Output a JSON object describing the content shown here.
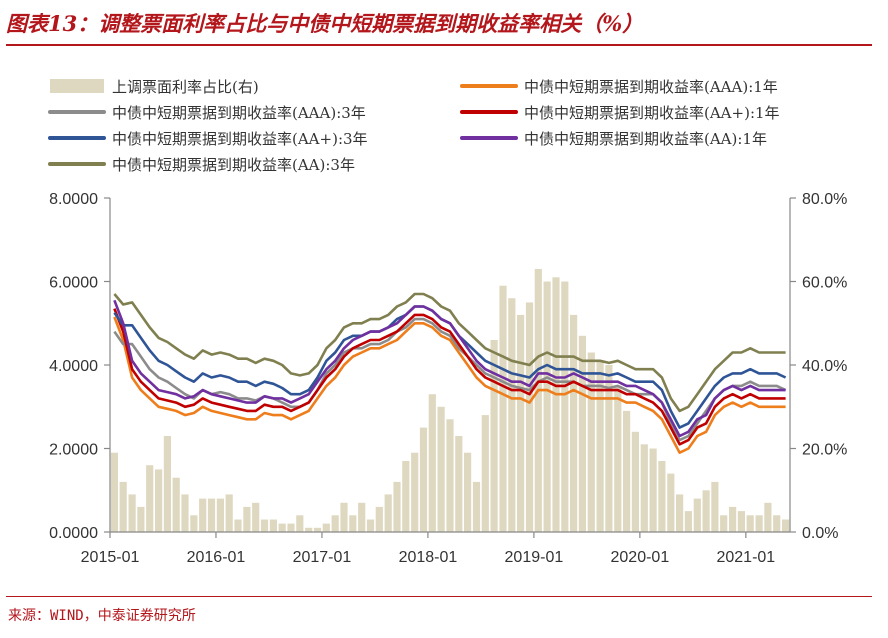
{
  "header": {
    "title": "图表13：调整票面利率占比与中债中短期票据到期收益率相关（%）"
  },
  "footer": {
    "source": "来源：WIND，中泰证券研究所"
  },
  "colors": {
    "brand": "#b3161b",
    "bar": "#dfd8c0",
    "aaa1": "#ee7d1c",
    "aaa3": "#8c8c8c",
    "aap1": "#c00000",
    "aap3": "#2f5597",
    "aa1": "#7030a0",
    "aa3": "#7f7f4f"
  },
  "chart_data": {
    "type": "line",
    "title": "",
    "x_ticks": [
      "2015-01",
      "2016-01",
      "2017-01",
      "2018-01",
      "2019-01",
      "2020-01",
      "2021-01"
    ],
    "y_left": {
      "ticks": [
        "0.0000",
        "2.0000",
        "4.0000",
        "6.0000",
        "8.0000"
      ],
      "range": [
        0,
        8
      ]
    },
    "y_right": {
      "ticks": [
        "0.0%",
        "20.0%",
        "40.0%",
        "60.0%",
        "80.0%"
      ],
      "range": [
        0,
        80
      ]
    },
    "grid": false,
    "legend_position": "top",
    "x_months": [
      0,
      1,
      2,
      3,
      4,
      5,
      6,
      7,
      8,
      9,
      10,
      11,
      12,
      13,
      14,
      15,
      16,
      17,
      18,
      19,
      20,
      21,
      22,
      23,
      24,
      25,
      26,
      27,
      28,
      29,
      30,
      31,
      32,
      33,
      34,
      35,
      36,
      37,
      38,
      39,
      40,
      41,
      42,
      43,
      44,
      45,
      46,
      47,
      48,
      49,
      50,
      51,
      52,
      53,
      54,
      55,
      56,
      57,
      58,
      59,
      60,
      61,
      62,
      63,
      64,
      65,
      66,
      67,
      68,
      69,
      70,
      71,
      72,
      73,
      74,
      75,
      76
    ],
    "series": [
      {
        "name": "上调票面利率占比(右)",
        "kind": "bar",
        "axis": "right",
        "color_key": "bar",
        "values": [
          19,
          12,
          9,
          6,
          16,
          15,
          23,
          13,
          9,
          4,
          8,
          8,
          8,
          9,
          3,
          6,
          7,
          3,
          3,
          2,
          2,
          4,
          1,
          1,
          2,
          4,
          7,
          4,
          7,
          3,
          6,
          9,
          12,
          17,
          19,
          25,
          33,
          30,
          27,
          23,
          19,
          12,
          28,
          46,
          59,
          56,
          52,
          55,
          63,
          60,
          61,
          60,
          52,
          47,
          43,
          41,
          40,
          35,
          29,
          24,
          21,
          20,
          17,
          14,
          9,
          5,
          8,
          10,
          12,
          4,
          6,
          5,
          4,
          4,
          7,
          4,
          3
        ]
      },
      {
        "name": "中债中短期票据到期收益率(AAA):1年",
        "kind": "line",
        "axis": "left",
        "color_key": "aaa1",
        "values": [
          5.15,
          4.6,
          3.7,
          3.4,
          3.2,
          3.0,
          2.95,
          2.9,
          2.8,
          2.85,
          3.0,
          2.9,
          2.85,
          2.8,
          2.75,
          2.7,
          2.7,
          2.85,
          2.8,
          2.8,
          2.7,
          2.8,
          2.9,
          3.2,
          3.5,
          3.7,
          4.0,
          4.2,
          4.3,
          4.4,
          4.4,
          4.5,
          4.6,
          4.8,
          5.0,
          5.0,
          4.9,
          4.7,
          4.6,
          4.3,
          4.0,
          3.7,
          3.5,
          3.4,
          3.3,
          3.2,
          3.2,
          3.1,
          3.4,
          3.4,
          3.3,
          3.3,
          3.4,
          3.3,
          3.2,
          3.2,
          3.2,
          3.2,
          3.1,
          3.1,
          3.0,
          2.9,
          2.7,
          2.3,
          1.9,
          2.0,
          2.3,
          2.4,
          2.8,
          3.0,
          3.1,
          3.0,
          3.1,
          3.0,
          3.0,
          3.0,
          3.0
        ]
      },
      {
        "name": "中债中短期票据到期收益率(AAA):3年",
        "kind": "line",
        "axis": "left",
        "color_key": "aaa3",
        "values": [
          4.8,
          4.5,
          4.5,
          4.2,
          3.9,
          3.7,
          3.6,
          3.45,
          3.3,
          3.2,
          3.4,
          3.3,
          3.35,
          3.3,
          3.2,
          3.2,
          3.15,
          3.25,
          3.2,
          3.1,
          3.0,
          3.0,
          3.1,
          3.4,
          3.8,
          4.0,
          4.3,
          4.4,
          4.4,
          4.5,
          4.5,
          4.6,
          4.8,
          4.9,
          5.1,
          5.1,
          5.0,
          4.8,
          4.7,
          4.4,
          4.2,
          4.0,
          3.8,
          3.7,
          3.6,
          3.5,
          3.45,
          3.4,
          3.6,
          3.7,
          3.6,
          3.6,
          3.6,
          3.5,
          3.5,
          3.5,
          3.45,
          3.5,
          3.4,
          3.3,
          3.3,
          3.3,
          3.1,
          2.6,
          2.2,
          2.3,
          2.6,
          2.9,
          3.2,
          3.4,
          3.5,
          3.5,
          3.6,
          3.5,
          3.5,
          3.5,
          3.4
        ]
      },
      {
        "name": "中债中短期票据到期收益率(AA+):1年",
        "kind": "line",
        "axis": "left",
        "color_key": "aap1",
        "values": [
          5.35,
          4.8,
          3.9,
          3.6,
          3.4,
          3.2,
          3.15,
          3.1,
          3.0,
          3.05,
          3.2,
          3.1,
          3.05,
          3.0,
          2.95,
          2.9,
          2.9,
          3.05,
          3.0,
          3.0,
          2.9,
          3.0,
          3.1,
          3.4,
          3.7,
          3.9,
          4.2,
          4.4,
          4.5,
          4.6,
          4.6,
          4.7,
          4.8,
          5.0,
          5.2,
          5.2,
          5.1,
          4.9,
          4.8,
          4.5,
          4.2,
          3.9,
          3.7,
          3.6,
          3.5,
          3.4,
          3.4,
          3.3,
          3.6,
          3.6,
          3.5,
          3.5,
          3.6,
          3.5,
          3.4,
          3.4,
          3.4,
          3.4,
          3.3,
          3.3,
          3.2,
          3.1,
          2.9,
          2.5,
          2.1,
          2.2,
          2.5,
          2.6,
          3.0,
          3.2,
          3.3,
          3.2,
          3.3,
          3.2,
          3.2,
          3.2,
          3.2
        ]
      },
      {
        "name": "中债中短期票据到期收益率(AA+):3年",
        "kind": "line",
        "axis": "left",
        "color_key": "aap3",
        "values": [
          5.25,
          4.95,
          4.95,
          4.65,
          4.35,
          4.1,
          4.0,
          3.85,
          3.7,
          3.6,
          3.8,
          3.7,
          3.75,
          3.7,
          3.6,
          3.6,
          3.5,
          3.6,
          3.55,
          3.45,
          3.3,
          3.3,
          3.4,
          3.7,
          4.1,
          4.3,
          4.6,
          4.7,
          4.7,
          4.8,
          4.8,
          4.9,
          5.1,
          5.2,
          5.4,
          5.4,
          5.3,
          5.1,
          5.0,
          4.7,
          4.5,
          4.3,
          4.1,
          4.0,
          3.9,
          3.8,
          3.75,
          3.7,
          3.9,
          4.0,
          3.9,
          3.9,
          3.9,
          3.8,
          3.8,
          3.8,
          3.75,
          3.8,
          3.7,
          3.6,
          3.6,
          3.6,
          3.4,
          2.9,
          2.5,
          2.6,
          2.9,
          3.2,
          3.5,
          3.7,
          3.8,
          3.8,
          3.9,
          3.8,
          3.8,
          3.8,
          3.7
        ]
      },
      {
        "name": "中债中短期票据到期收益率(AA):1年",
        "kind": "line",
        "axis": "left",
        "color_key": "aa1",
        "values": [
          5.55,
          5.0,
          4.1,
          3.8,
          3.6,
          3.4,
          3.35,
          3.3,
          3.2,
          3.25,
          3.4,
          3.3,
          3.25,
          3.2,
          3.15,
          3.1,
          3.1,
          3.25,
          3.2,
          3.2,
          3.1,
          3.2,
          3.3,
          3.6,
          3.9,
          4.1,
          4.4,
          4.6,
          4.7,
          4.8,
          4.8,
          4.9,
          5.0,
          5.2,
          5.4,
          5.4,
          5.3,
          5.1,
          5.0,
          4.7,
          4.4,
          4.1,
          3.9,
          3.8,
          3.7,
          3.6,
          3.6,
          3.5,
          3.8,
          3.8,
          3.7,
          3.7,
          3.8,
          3.7,
          3.6,
          3.6,
          3.6,
          3.6,
          3.5,
          3.5,
          3.4,
          3.3,
          3.1,
          2.7,
          2.3,
          2.4,
          2.7,
          2.8,
          3.2,
          3.4,
          3.5,
          3.4,
          3.5,
          3.4,
          3.4,
          3.4,
          3.4
        ]
      },
      {
        "name": "中债中短期票据到期收益率(AA):3年",
        "kind": "line",
        "axis": "left",
        "color_key": "aa3",
        "values": [
          5.7,
          5.45,
          5.5,
          5.2,
          4.9,
          4.65,
          4.55,
          4.4,
          4.25,
          4.15,
          4.35,
          4.25,
          4.3,
          4.25,
          4.15,
          4.15,
          4.05,
          4.15,
          4.1,
          4.0,
          3.8,
          3.75,
          3.8,
          4.0,
          4.4,
          4.6,
          4.9,
          5.0,
          5.0,
          5.1,
          5.1,
          5.2,
          5.4,
          5.5,
          5.7,
          5.7,
          5.6,
          5.4,
          5.3,
          5.0,
          4.8,
          4.6,
          4.4,
          4.3,
          4.2,
          4.1,
          4.05,
          4.0,
          4.2,
          4.3,
          4.2,
          4.2,
          4.2,
          4.1,
          4.1,
          4.1,
          4.05,
          4.1,
          4.0,
          3.9,
          3.9,
          3.9,
          3.7,
          3.2,
          2.9,
          3.0,
          3.3,
          3.6,
          3.9,
          4.1,
          4.3,
          4.3,
          4.4,
          4.3,
          4.3,
          4.3,
          4.3
        ]
      }
    ]
  }
}
